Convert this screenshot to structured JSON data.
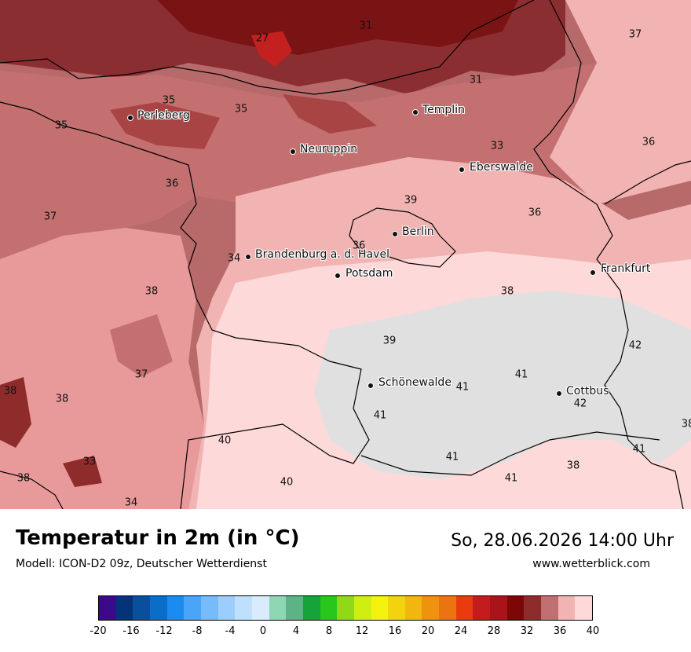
{
  "title": "Temperatur in 2m (in °C)",
  "model": "Modell: ICON-D2 09z, Deutscher Wetterdienst",
  "datetime": "So, 28.06.2026 14:00 Uhr",
  "website": "www.wetterblick.com",
  "cities": [
    {
      "name": "Perleberg"
    },
    {
      "name": "Templin"
    },
    {
      "name": "Neuruppin"
    },
    {
      "name": "Eberswalde"
    },
    {
      "name": "Berlin"
    },
    {
      "name": "Brandenburg a. d. Havel"
    },
    {
      "name": "Potsdam"
    },
    {
      "name": "Frankfurt"
    },
    {
      "name": "Schönewalde"
    },
    {
      "name": "Cottbus"
    }
  ],
  "values": [
    "27",
    "31",
    "37",
    "31",
    "35",
    "35",
    "35",
    "33",
    "36",
    "36",
    "37",
    "39",
    "36",
    "36",
    "34",
    "38",
    "38",
    "39",
    "37",
    "38",
    "38",
    "42",
    "41",
    "41",
    "41",
    "42",
    "41",
    "40",
    "41",
    "33",
    "38",
    "40",
    "38",
    "34",
    "41",
    "38"
  ],
  "colorbar": {
    "colors": [
      "#3a0a8a",
      "#05337a",
      "#0a4f9c",
      "#0a6ec8",
      "#1b8bf0",
      "#4aa4f7",
      "#77bbfb",
      "#9ccdfc",
      "#bfe0fd",
      "#d9ecfe",
      "#8fd6b4",
      "#5db386",
      "#15a33a",
      "#29c61c",
      "#90d917",
      "#cfef12",
      "#f3f30e",
      "#f3d20e",
      "#f1b70e",
      "#ef920e",
      "#ec7410",
      "#e83c0e",
      "#c41c1c",
      "#a8141a",
      "#7d0606",
      "#8e2c2c",
      "#c07070",
      "#f2b3b3",
      "#fdd9d9"
    ],
    "tick_labels": [
      "-20",
      "-16",
      "-12",
      "-8",
      "-4",
      "0",
      "4",
      "8",
      "12",
      "16",
      "20",
      "24",
      "28",
      "32",
      "36",
      "40"
    ]
  }
}
